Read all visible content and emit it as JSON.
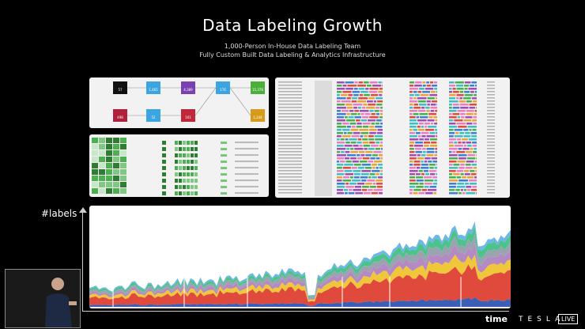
{
  "slide": {
    "title": "Data Labeling Growth",
    "subtitle_1": "1,000-Person In-House Data Labeling Team",
    "subtitle_2": "Fully Custom Built Data Labeling & Analytics Infrastructure"
  },
  "chart": {
    "ylabel": "#labels",
    "colors": [
      "#3a5fb5",
      "#e04a3c",
      "#f0c63a",
      "#b58ac2",
      "#9aa4b0",
      "#4cc38a",
      "#6fb6e8"
    ]
  },
  "workflow": {
    "nodes": [
      "57",
      "1,465",
      "4,389",
      "176",
      "15,376",
      "498",
      "52",
      "161",
      "1,244"
    ],
    "colors": [
      "#111111",
      "#3aa5e0",
      "#7a3fb0",
      "#3aa5e0",
      "#4caf3a",
      "#b0203a",
      "#3aa5e0",
      "#c0283a",
      "#d89a1a"
    ]
  },
  "grid_panel": {
    "colors": [
      "#2e7d32",
      "#4caf50",
      "#81c784",
      "#c8e6c9"
    ]
  },
  "timeline_panel": {
    "colors": [
      "#e34a3a",
      "#f0a030",
      "#46b04a",
      "#3a7fd8",
      "#a44ab8",
      "#38c0c8",
      "#f07ac0"
    ]
  },
  "branding": {
    "time": "time",
    "tesla": "TESLA",
    "live": "LIVE"
  }
}
